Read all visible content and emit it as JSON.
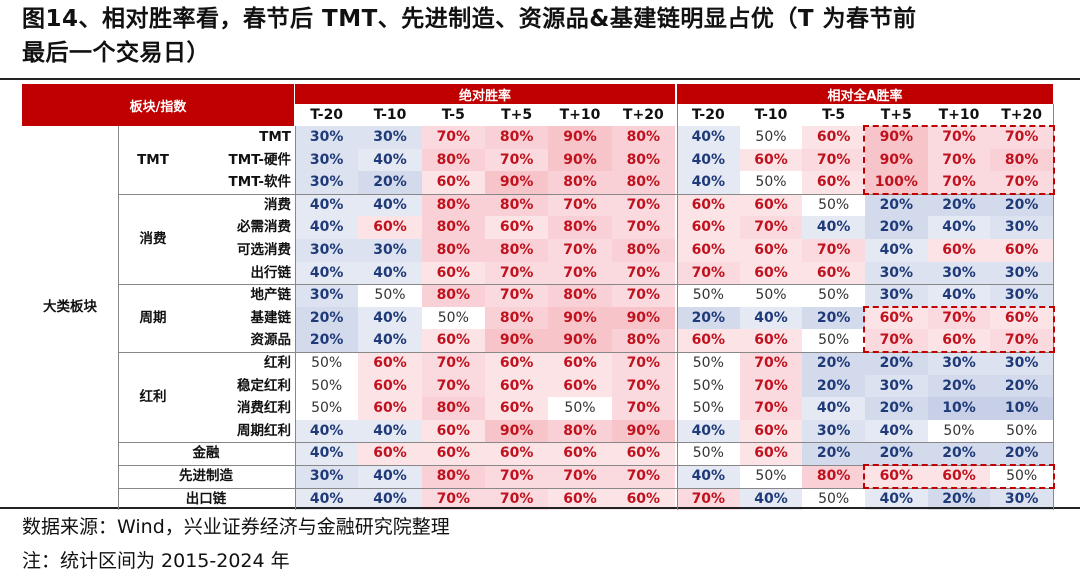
{
  "title": {
    "line1": "图14、相对胜率看，春节后 TMT、先进制造、资源品&基建链明显占优（T 为春节前",
    "line2": "最后一个交易日）"
  },
  "table": {
    "header_left": "板块/指数",
    "group_abs": "绝对胜率",
    "group_rel": "相对全A胜率",
    "columns": [
      "T-20",
      "T-10",
      "T-5",
      "T+5",
      "T+10",
      "T+20"
    ],
    "category_label": "大类板块",
    "subgroups": [
      {
        "label": "TMT",
        "rows": [
          0,
          1,
          2
        ]
      },
      {
        "label": "消费",
        "rows": [
          3,
          4,
          5,
          6
        ]
      },
      {
        "label": "周期",
        "rows": [
          7,
          8,
          9
        ]
      },
      {
        "label": "红利",
        "rows": [
          10,
          11,
          12,
          13
        ]
      }
    ],
    "rows": [
      {
        "name": "TMT",
        "abs": [
          "30%",
          "30%",
          "70%",
          "80%",
          "90%",
          "80%"
        ],
        "rel": [
          "40%",
          "50%",
          "60%",
          "90%",
          "70%",
          "70%"
        ]
      },
      {
        "name": "TMT-硬件",
        "abs": [
          "30%",
          "40%",
          "80%",
          "70%",
          "90%",
          "80%"
        ],
        "rel": [
          "40%",
          "60%",
          "70%",
          "90%",
          "70%",
          "80%"
        ]
      },
      {
        "name": "TMT-软件",
        "abs": [
          "30%",
          "20%",
          "60%",
          "90%",
          "80%",
          "80%"
        ],
        "rel": [
          "40%",
          "50%",
          "60%",
          "100%",
          "70%",
          "70%"
        ]
      },
      {
        "name": "消费",
        "abs": [
          "40%",
          "40%",
          "80%",
          "80%",
          "70%",
          "70%"
        ],
        "rel": [
          "60%",
          "60%",
          "50%",
          "20%",
          "20%",
          "20%"
        ]
      },
      {
        "name": "必需消费",
        "abs": [
          "40%",
          "60%",
          "80%",
          "60%",
          "80%",
          "70%"
        ],
        "rel": [
          "60%",
          "70%",
          "40%",
          "20%",
          "40%",
          "30%"
        ]
      },
      {
        "name": "可选消费",
        "abs": [
          "30%",
          "30%",
          "80%",
          "80%",
          "70%",
          "80%"
        ],
        "rel": [
          "60%",
          "60%",
          "70%",
          "40%",
          "60%",
          "60%"
        ]
      },
      {
        "name": "出行链",
        "abs": [
          "40%",
          "40%",
          "60%",
          "70%",
          "70%",
          "70%"
        ],
        "rel": [
          "70%",
          "60%",
          "60%",
          "30%",
          "30%",
          "30%"
        ]
      },
      {
        "name": "地产链",
        "abs": [
          "30%",
          "50%",
          "80%",
          "70%",
          "80%",
          "70%"
        ],
        "rel": [
          "50%",
          "50%",
          "50%",
          "30%",
          "40%",
          "30%"
        ]
      },
      {
        "name": "基建链",
        "abs": [
          "20%",
          "40%",
          "50%",
          "80%",
          "90%",
          "90%"
        ],
        "rel": [
          "20%",
          "40%",
          "20%",
          "60%",
          "70%",
          "60%"
        ]
      },
      {
        "name": "资源品",
        "abs": [
          "20%",
          "40%",
          "60%",
          "90%",
          "90%",
          "80%"
        ],
        "rel": [
          "60%",
          "60%",
          "50%",
          "70%",
          "60%",
          "70%"
        ]
      },
      {
        "name": "红利",
        "abs": [
          "50%",
          "60%",
          "70%",
          "60%",
          "60%",
          "70%"
        ],
        "rel": [
          "50%",
          "70%",
          "20%",
          "20%",
          "30%",
          "30%"
        ]
      },
      {
        "name": "稳定红利",
        "abs": [
          "50%",
          "60%",
          "70%",
          "60%",
          "60%",
          "70%"
        ],
        "rel": [
          "50%",
          "70%",
          "20%",
          "30%",
          "20%",
          "20%"
        ]
      },
      {
        "name": "消费红利",
        "abs": [
          "50%",
          "60%",
          "80%",
          "60%",
          "50%",
          "70%"
        ],
        "rel": [
          "50%",
          "70%",
          "40%",
          "20%",
          "10%",
          "10%"
        ]
      },
      {
        "name": "周期红利",
        "abs": [
          "40%",
          "40%",
          "60%",
          "90%",
          "80%",
          "90%"
        ],
        "rel": [
          "40%",
          "60%",
          "30%",
          "40%",
          "50%",
          "50%"
        ]
      },
      {
        "name": "金融",
        "abs": [
          "40%",
          "60%",
          "60%",
          "60%",
          "60%",
          "60%"
        ],
        "rel": [
          "50%",
          "60%",
          "20%",
          "20%",
          "20%",
          "20%"
        ]
      },
      {
        "name": "先进制造",
        "abs": [
          "30%",
          "40%",
          "80%",
          "70%",
          "70%",
          "70%"
        ],
        "rel": [
          "40%",
          "50%",
          "80%",
          "60%",
          "60%",
          "50%"
        ]
      },
      {
        "name": "出口链",
        "abs": [
          "40%",
          "40%",
          "70%",
          "70%",
          "60%",
          "60%"
        ],
        "rel": [
          "70%",
          "40%",
          "50%",
          "40%",
          "20%",
          "30%"
        ]
      }
    ],
    "highlight_boxes": [
      {
        "rows": [
          0,
          2
        ],
        "cols": "rel T+5..T+20"
      },
      {
        "rows": [
          8,
          9
        ],
        "cols": "rel T+5..T+20"
      },
      {
        "rows": [
          15,
          15
        ],
        "cols": "rel T+5..T+20"
      }
    ],
    "colors": {
      "header_red": "#c00000",
      "high": "#c0121e",
      "low": "#1f3a78",
      "neutral": "#333333"
    }
  },
  "footnotes": {
    "source": "数据来源：Wind，兴业证券经济与金融研究院整理",
    "note": "注：统计区间为 2015-2024 年"
  }
}
